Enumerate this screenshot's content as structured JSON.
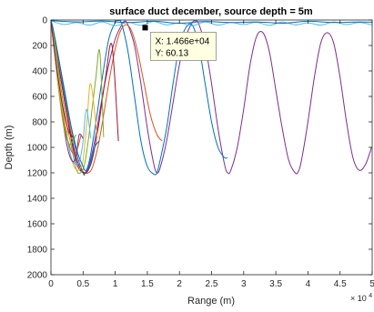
{
  "chart_data": {
    "type": "line",
    "title": "surface duct december, source depth = 5m",
    "xlabel": "Range (m)",
    "ylabel": "Depth (m)",
    "x_exponent_label": "× 10",
    "x_exponent_power": "4",
    "xlim": [
      0,
      50000
    ],
    "ylim": [
      0,
      2000
    ],
    "y_reversed": true,
    "grid": false,
    "xticks": [
      0,
      5000,
      10000,
      15000,
      20000,
      25000,
      30000,
      35000,
      40000,
      45000,
      50000
    ],
    "xtick_labels": [
      "0",
      "0.5",
      "1",
      "1.5",
      "2",
      "2.5",
      "3",
      "3.5",
      "4",
      "4.5",
      "5"
    ],
    "yticks": [
      0,
      200,
      400,
      600,
      800,
      1000,
      1200,
      1400,
      1600,
      1800,
      2000
    ],
    "ytick_labels": [
      "0",
      "200",
      "400",
      "600",
      "800",
      "1000",
      "1200",
      "1400",
      "1600",
      "1800",
      "2000"
    ],
    "series": [
      {
        "color": "#7e2f8e",
        "x": [
          0,
          300,
          1000,
          2000,
          3000,
          4000,
          5000,
          5500,
          6000,
          7000,
          8000,
          9000,
          10000,
          11000,
          11500,
          12000,
          13000,
          14000,
          15000,
          16000,
          16500,
          17000,
          18000,
          19000,
          20000,
          21000,
          22000,
          22500,
          23000,
          24000,
          25000,
          26000,
          27000,
          27500,
          28000,
          29000,
          30000,
          31000,
          32000,
          33000,
          34000,
          35000,
          36000,
          37000,
          38000,
          38500,
          39000,
          40000,
          41000,
          42000,
          43000,
          44000,
          45000,
          46000,
          47000,
          48000,
          49000,
          49900
        ],
        "y": [
          5,
          100,
          300,
          600,
          900,
          1130,
          1200,
          1190,
          1130,
          900,
          600,
          350,
          150,
          40,
          8,
          40,
          200,
          500,
          850,
          1130,
          1200,
          1160,
          950,
          650,
          350,
          130,
          20,
          8,
          30,
          200,
          500,
          850,
          1130,
          1200,
          1180,
          1000,
          700,
          350,
          130,
          100,
          250,
          550,
          850,
          1100,
          1200,
          1190,
          1100,
          800,
          450,
          180,
          100,
          180,
          450,
          800,
          1080,
          1180,
          1130,
          1000
        ]
      },
      {
        "color": "#0072bd",
        "x": [
          0,
          1000,
          2000,
          3000,
          4000,
          5000,
          5300,
          6000,
          7000,
          8000,
          9000,
          10000,
          10500,
          11000,
          12000,
          13000,
          14000,
          15000,
          16000,
          16500,
          17000,
          18000,
          19000,
          20000,
          21000,
          22000,
          23000,
          24000,
          25000,
          26000,
          27000,
          27500
        ],
        "y": [
          5,
          250,
          520,
          800,
          1050,
          1200,
          1205,
          1100,
          800,
          450,
          150,
          20,
          5,
          30,
          250,
          600,
          950,
          1150,
          1210,
          1200,
          1100,
          850,
          500,
          200,
          60,
          40,
          200,
          500,
          800,
          1000,
          1080,
          1080
        ]
      },
      {
        "color": "#4dbeee",
        "x": [
          0,
          2000,
          4000,
          6000,
          8000,
          10000,
          12000,
          14000,
          16000,
          18000,
          20000,
          22000,
          24000,
          26000,
          28000,
          30000,
          32000,
          34000,
          36000,
          38000,
          40000,
          42000,
          44000,
          46000,
          48000,
          50000
        ],
        "y": [
          5,
          35,
          20,
          40,
          15,
          45,
          18,
          42,
          12,
          38,
          22,
          45,
          15,
          40,
          20,
          35,
          18,
          42,
          15,
          38,
          22,
          40,
          15,
          36,
          20,
          38
        ]
      },
      {
        "color": "#0072bd",
        "x": [
          0,
          4000,
          8000,
          12000,
          16000,
          20000,
          24000,
          28000,
          32000,
          36000,
          40000,
          44000,
          48000,
          50000
        ],
        "y": [
          5,
          15,
          8,
          20,
          10,
          25,
          12,
          20,
          15,
          25,
          10,
          20,
          15,
          18
        ]
      },
      {
        "color": "#d95319",
        "x": [
          0,
          1000,
          2000,
          3000,
          4000,
          5000,
          5800,
          6500,
          7500,
          8500,
          9500,
          10500,
          11500,
          12500,
          13500,
          14500,
          15500,
          16500,
          17300
        ],
        "y": [
          5,
          250,
          550,
          850,
          1100,
          1190,
          1200,
          1150,
          950,
          650,
          350,
          130,
          40,
          80,
          250,
          500,
          750,
          900,
          950
        ]
      },
      {
        "color": "#a2142f",
        "x": [
          0,
          500,
          1500,
          2500,
          3500,
          4500,
          5200,
          5800,
          6500,
          7500,
          8500,
          9500,
          10500
        ],
        "y": [
          5,
          150,
          450,
          750,
          1000,
          1160,
          1200,
          1180,
          1080,
          800,
          450,
          200,
          950
        ]
      },
      {
        "color": "#77ac30",
        "x": [
          0,
          800,
          1600,
          2400,
          3200,
          4000,
          4600,
          5200,
          5800,
          6400,
          7000,
          7600,
          8200
        ],
        "y": [
          5,
          250,
          550,
          800,
          1000,
          1180,
          1200,
          1140,
          950,
          700,
          450,
          250,
          920
        ]
      },
      {
        "color": "#edb120",
        "x": [
          0,
          600,
          1200,
          1800,
          2400,
          3000,
          3600,
          4200,
          4600,
          5000,
          5600,
          6200,
          7200
        ],
        "y": [
          5,
          220,
          450,
          680,
          880,
          1050,
          1150,
          1180,
          1160,
          1100,
          800,
          500,
          920
        ]
      },
      {
        "color": "#4dbeee",
        "x": [
          0,
          500,
          1000,
          1500,
          2000,
          2500,
          3000,
          3500,
          4000,
          4500,
          5000,
          5500,
          6200
        ],
        "y": [
          5,
          200,
          400,
          600,
          780,
          920,
          1050,
          1120,
          1130,
          1100,
          950,
          700,
          930
        ]
      },
      {
        "color": "#7e2f8e",
        "x": [
          0,
          400,
          800,
          1200,
          1600,
          2000,
          2400,
          2800,
          3200,
          3600,
          4000,
          4400,
          5000
        ],
        "y": [
          5,
          180,
          360,
          540,
          700,
          840,
          960,
          1050,
          1100,
          1110,
          1050,
          900,
          930
        ]
      },
      {
        "color": "#d95319",
        "x": [
          0,
          300,
          700,
          1100,
          1500,
          1900,
          2300,
          2700,
          3100,
          3500,
          3900,
          4300,
          4700
        ],
        "y": [
          5,
          150,
          320,
          480,
          620,
          760,
          880,
          960,
          1020,
          1050,
          1040,
          980,
          900
        ]
      },
      {
        "color": "#77ac30",
        "x": [
          0,
          300,
          600,
          900,
          1200,
          1500,
          1800,
          2100,
          2400,
          2700,
          3000,
          3300,
          3900
        ],
        "y": [
          5,
          140,
          280,
          420,
          550,
          670,
          780,
          860,
          920,
          960,
          980,
          960,
          900
        ]
      },
      {
        "color": "#edb120",
        "x": [
          0,
          200,
          500,
          800,
          1100,
          1400,
          1700,
          2000,
          2300,
          2600,
          2900,
          3200,
          3600
        ],
        "y": [
          5,
          100,
          230,
          360,
          480,
          590,
          690,
          770,
          840,
          890,
          920,
          930,
          910
        ]
      },
      {
        "color": "#a2142f",
        "x": [
          0,
          200,
          400,
          700,
          1000,
          1300,
          1600,
          1900,
          2200,
          2500,
          2800,
          3100,
          3400
        ],
        "y": [
          5,
          90,
          180,
          300,
          420,
          520,
          620,
          700,
          770,
          830,
          880,
          900,
          920
        ]
      },
      {
        "color": "#0072bd",
        "x": [
          0,
          300,
          1200,
          2200,
          3200,
          4200,
          5000,
          5300,
          6000,
          6800,
          7500
        ],
        "y": [
          5,
          60,
          300,
          600,
          850,
          1050,
          1150,
          1180,
          1150,
          1000,
          950
        ]
      }
    ],
    "datatip": {
      "x_value": 14660,
      "y_value": 60.13,
      "x_text": "X: 1.466e+04",
      "y_text": "Y: 60.13"
    }
  }
}
